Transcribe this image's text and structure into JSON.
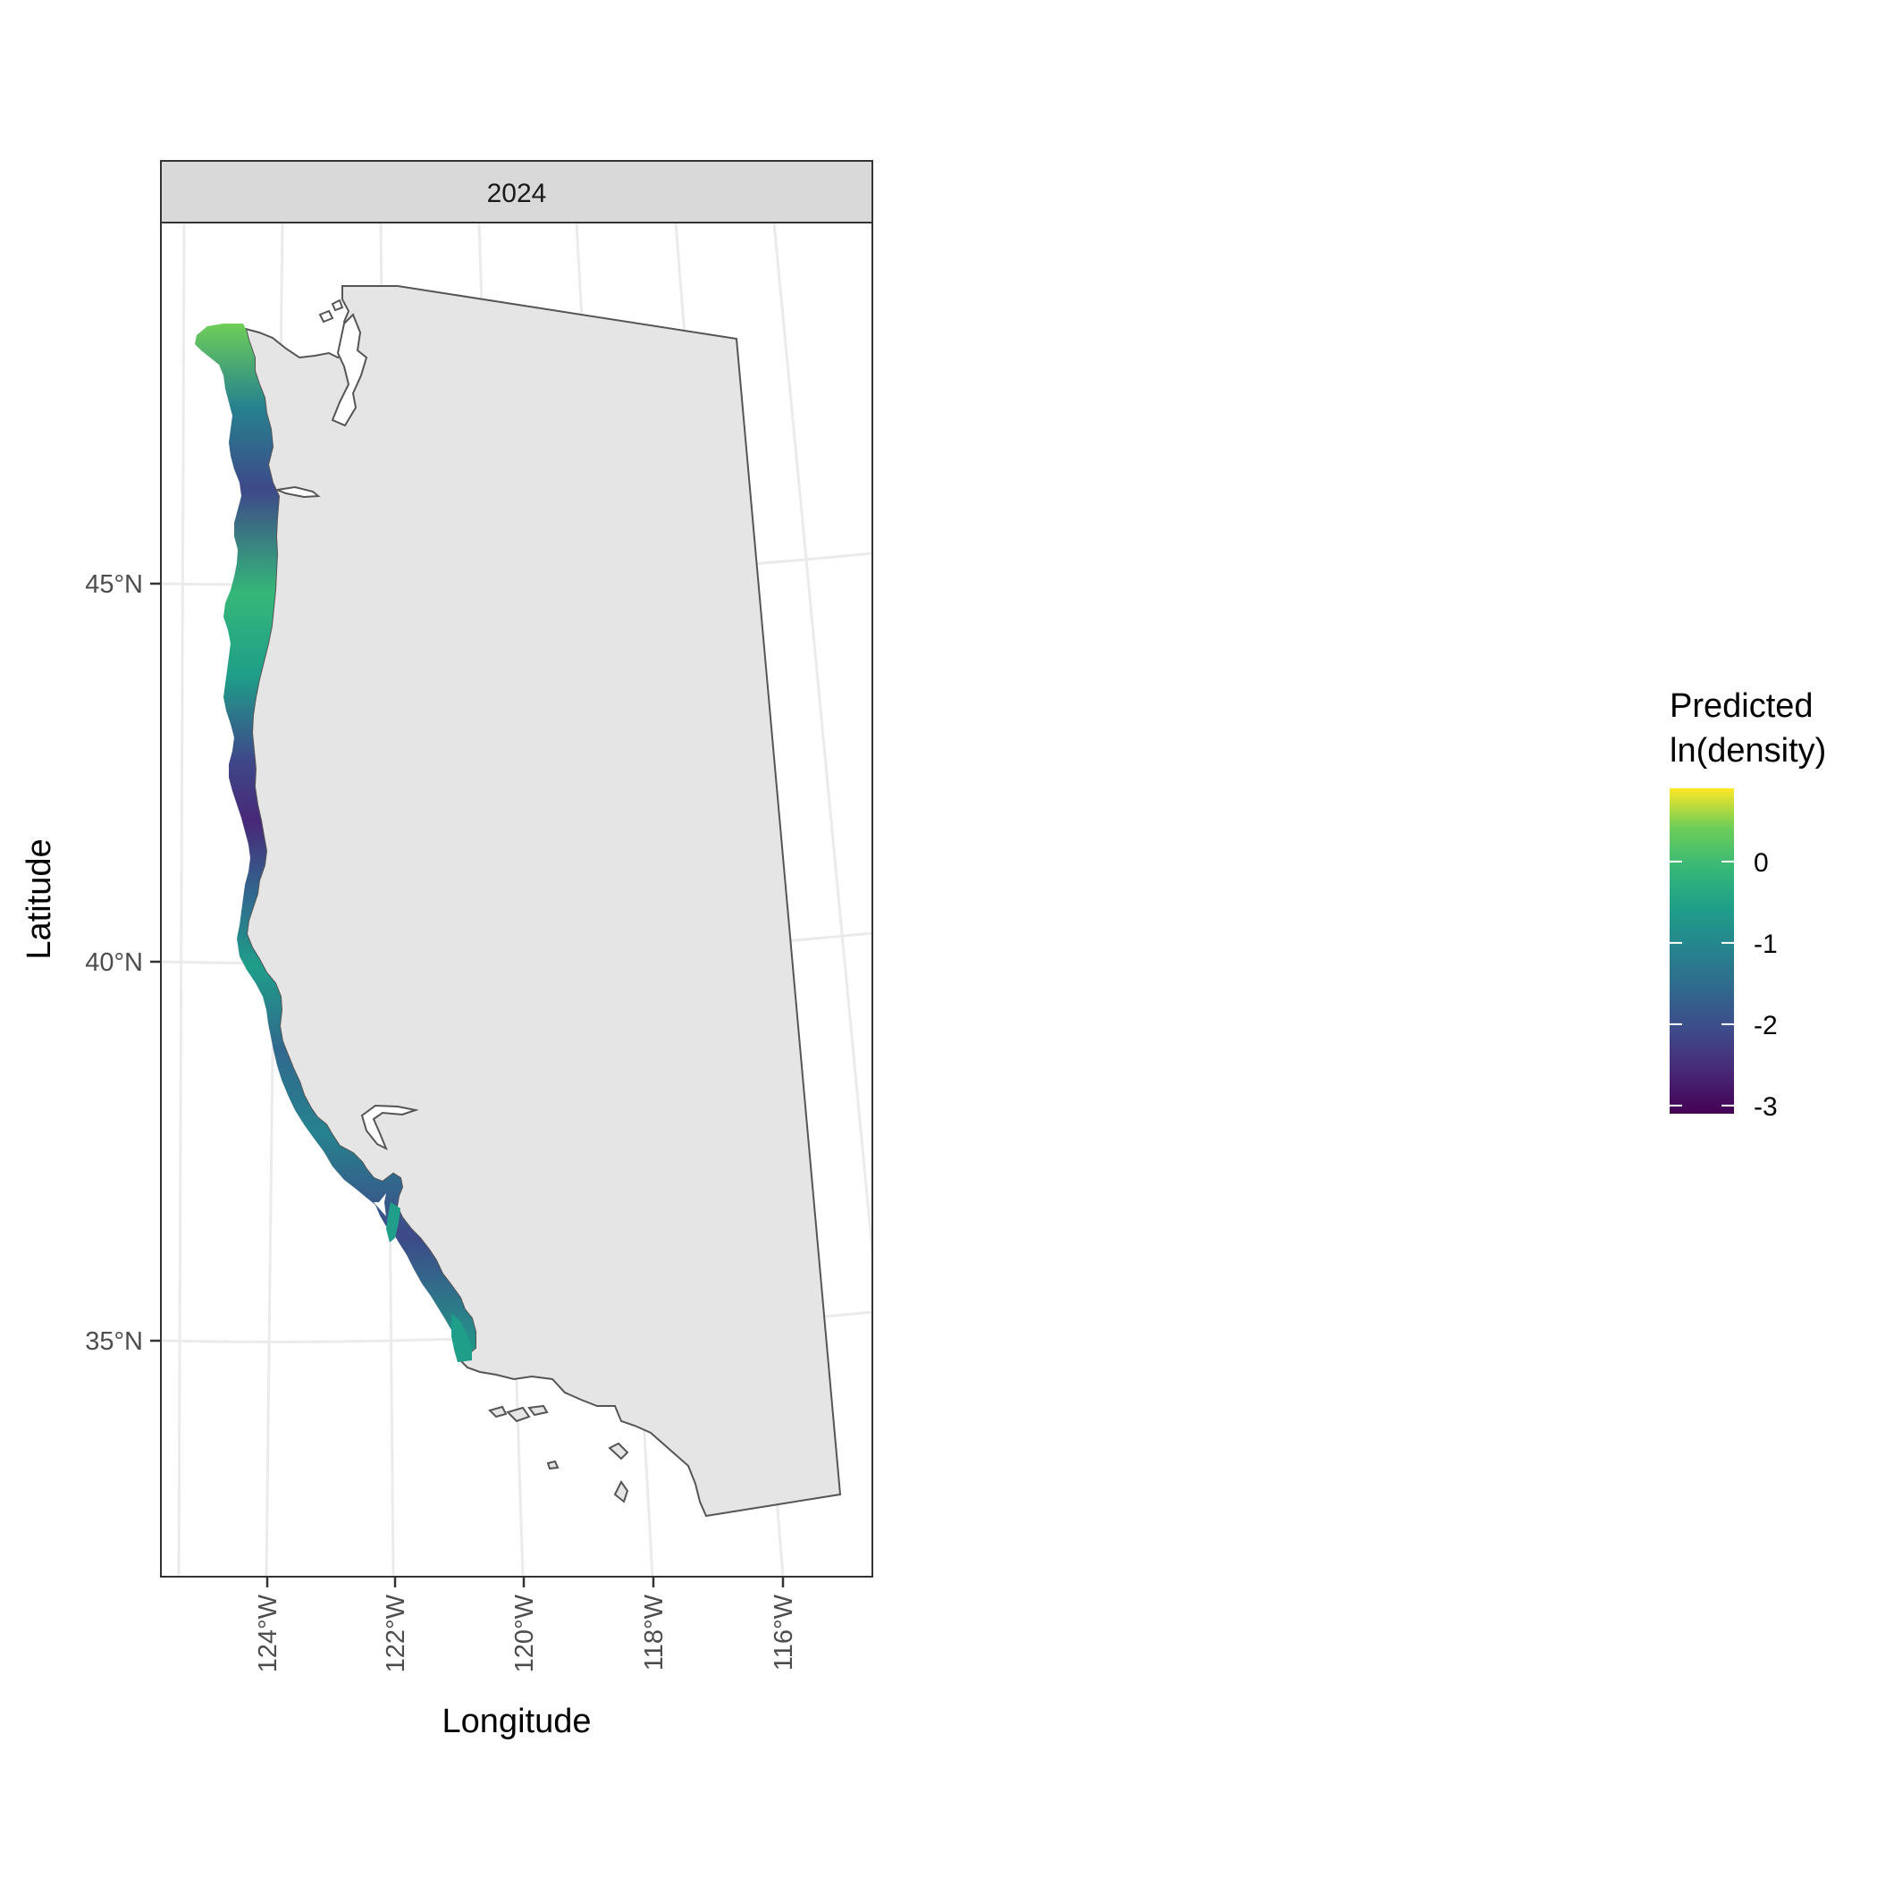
{
  "chart_data": {
    "type": "map",
    "facet_label": "2024",
    "xlabel": "Longitude",
    "ylabel": "Latitude",
    "x_ticks": [
      "124°W",
      "122°W",
      "120°W",
      "118°W",
      "116°W"
    ],
    "y_ticks": [
      "45°N",
      "40°N",
      "35°N"
    ],
    "grid": true,
    "legend": {
      "title_line1": "Predicted",
      "title_line2": "ln(density)",
      "placement": "right",
      "ticks": [
        {
          "label": "0",
          "value": 0
        },
        {
          "label": "-1",
          "value": -1
        },
        {
          "label": "-2",
          "value": -2
        },
        {
          "label": "-3",
          "value": -3
        }
      ],
      "range": [
        -3.1,
        0.9
      ],
      "colormap": "viridis",
      "colors": [
        "#440154",
        "#3b528b",
        "#21918c",
        "#5ec962",
        "#fde725"
      ]
    },
    "land_color": "#e5e5e5",
    "land_outline_color": "#555555"
  }
}
